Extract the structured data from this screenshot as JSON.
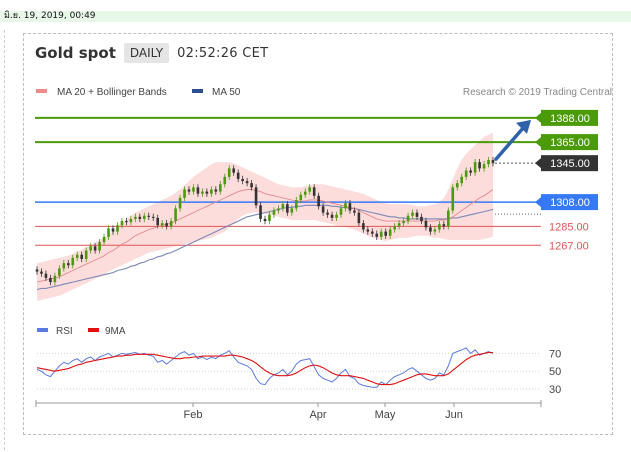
{
  "timestamp": "มิ.ย. 19, 2019, 00:49",
  "header": {
    "title": "Gold spot",
    "timeframe": "DAILY",
    "time": "02:52:26 CET"
  },
  "legend": {
    "bb_label": "MA 20 + Bollinger Bands",
    "ma50_label": "MA 50",
    "credit": "Research © 2019 Trading Central"
  },
  "colors": {
    "green": "#4a9a0a",
    "blue": "#3579f6",
    "red": "#e05555",
    "dark": "#333333",
    "bb_fill": "#fddcdc",
    "ma50": "#7a88b8",
    "rsi": "#5b7be0",
    "ma9": "#e01010",
    "arrow": "#2f62a8"
  },
  "chart_data": [
    {
      "type": "candlestick",
      "title": "Gold spot",
      "y_range": [
        1215,
        1405
      ],
      "x_ticks": [
        "Feb",
        "Apr",
        "May",
        "Jun"
      ],
      "levels": [
        {
          "value": 1388.0,
          "label": "1388.00",
          "kind": "resistance"
        },
        {
          "value": 1365.0,
          "label": "1365.00",
          "kind": "resistance"
        },
        {
          "value": 1345.0,
          "label": "1345.00",
          "kind": "last"
        },
        {
          "value": 1308.0,
          "label": "1308.00",
          "kind": "pivot"
        },
        {
          "value": 1285.0,
          "label": "1285.00",
          "kind": "support"
        },
        {
          "value": 1267.0,
          "label": "1267.00",
          "kind": "support"
        }
      ],
      "close": [
        1242,
        1240,
        1236,
        1232,
        1238,
        1245,
        1250,
        1248,
        1255,
        1258,
        1254,
        1262,
        1266,
        1262,
        1270,
        1275,
        1283,
        1280,
        1286,
        1290,
        1289,
        1292,
        1294,
        1292,
        1295,
        1294,
        1293,
        1286,
        1288,
        1285,
        1290,
        1302,
        1312,
        1320,
        1318,
        1322,
        1316,
        1318,
        1316,
        1320,
        1318,
        1325,
        1332,
        1340,
        1336,
        1330,
        1328,
        1326,
        1322,
        1305,
        1292,
        1290,
        1296,
        1300,
        1302,
        1306,
        1298,
        1302,
        1310,
        1315,
        1318,
        1322,
        1314,
        1304,
        1298,
        1296,
        1293,
        1296,
        1302,
        1307,
        1300,
        1298,
        1288,
        1282,
        1280,
        1278,
        1275,
        1280,
        1276,
        1282,
        1285,
        1288,
        1290,
        1295,
        1298,
        1294,
        1290,
        1284,
        1280,
        1282,
        1287,
        1285,
        1300,
        1322,
        1326,
        1332,
        1338,
        1336,
        1346,
        1340,
        1344,
        1348,
        1345
      ],
      "ma20": [
        1232,
        1233,
        1234,
        1235,
        1236,
        1237,
        1239,
        1241,
        1243,
        1245,
        1247,
        1249,
        1251,
        1253,
        1255,
        1257,
        1260,
        1262,
        1265,
        1268,
        1270,
        1273,
        1276,
        1278,
        1280,
        1282,
        1283,
        1285,
        1286,
        1287,
        1288,
        1290,
        1292,
        1294,
        1296,
        1298,
        1300,
        1302,
        1304,
        1306,
        1308,
        1310,
        1312,
        1314,
        1316,
        1318,
        1319,
        1320,
        1320,
        1319,
        1318,
        1316,
        1315,
        1314,
        1313,
        1312,
        1311,
        1310,
        1309,
        1309,
        1309,
        1310,
        1310,
        1310,
        1309,
        1308,
        1307,
        1306,
        1305,
        1304,
        1303,
        1302,
        1300,
        1298,
        1296,
        1294,
        1292,
        1291,
        1290,
        1290,
        1290,
        1290,
        1290,
        1290,
        1290,
        1290,
        1290,
        1290,
        1290,
        1290,
        1291,
        1291,
        1292,
        1294,
        1297,
        1300,
        1303,
        1306,
        1309,
        1312,
        1314,
        1317,
        1320
      ],
      "bb_upper": [
        1250,
        1251,
        1252,
        1253,
        1254,
        1255,
        1256,
        1257,
        1259,
        1261,
        1263,
        1265,
        1267,
        1270,
        1272,
        1274,
        1277,
        1280,
        1284,
        1288,
        1292,
        1295,
        1298,
        1300,
        1302,
        1304,
        1306,
        1308,
        1310,
        1312,
        1314,
        1317,
        1320,
        1324,
        1328,
        1332,
        1335,
        1338,
        1341,
        1344,
        1346,
        1346,
        1346,
        1346,
        1345,
        1343,
        1341,
        1339,
        1337,
        1335,
        1333,
        1331,
        1329,
        1327,
        1325,
        1324,
        1323,
        1322,
        1322,
        1322,
        1323,
        1324,
        1325,
        1325,
        1325,
        1324,
        1323,
        1322,
        1321,
        1320,
        1319,
        1318,
        1317,
        1316,
        1314,
        1312,
        1310,
        1308,
        1307,
        1306,
        1306,
        1306,
        1306,
        1306,
        1305,
        1304,
        1304,
        1304,
        1305,
        1306,
        1308,
        1312,
        1320,
        1330,
        1340,
        1348,
        1354,
        1358,
        1362,
        1366,
        1370,
        1372,
        1374
      ],
      "bb_lower": [
        1214,
        1215,
        1216,
        1217,
        1218,
        1219,
        1221,
        1223,
        1225,
        1227,
        1229,
        1231,
        1233,
        1235,
        1237,
        1239,
        1242,
        1244,
        1246,
        1248,
        1250,
        1252,
        1254,
        1256,
        1258,
        1260,
        1261,
        1262,
        1263,
        1264,
        1265,
        1266,
        1267,
        1268,
        1269,
        1270,
        1271,
        1272,
        1273,
        1274,
        1276,
        1278,
        1280,
        1284,
        1288,
        1292,
        1295,
        1297,
        1298,
        1298,
        1298,
        1297,
        1296,
        1295,
        1294,
        1293,
        1292,
        1291,
        1291,
        1291,
        1291,
        1291,
        1291,
        1290,
        1289,
        1288,
        1287,
        1286,
        1285,
        1284,
        1283,
        1282,
        1280,
        1278,
        1276,
        1274,
        1273,
        1272,
        1271,
        1272,
        1273,
        1274,
        1274,
        1274,
        1275,
        1276,
        1276,
        1276,
        1275,
        1274,
        1274,
        1273,
        1272,
        1272,
        1272,
        1272,
        1272,
        1272,
        1272,
        1272,
        1273,
        1274,
        1275
      ],
      "ma50": [
        1225,
        1226,
        1226,
        1227,
        1228,
        1229,
        1230,
        1231,
        1232,
        1233,
        1234,
        1235,
        1236,
        1237,
        1238,
        1239,
        1240,
        1241,
        1243,
        1244,
        1245,
        1247,
        1248,
        1250,
        1251,
        1253,
        1254,
        1256,
        1257,
        1259,
        1260,
        1262,
        1264,
        1266,
        1268,
        1270,
        1272,
        1274,
        1276,
        1278,
        1280,
        1282,
        1284,
        1286,
        1288,
        1290,
        1292,
        1294,
        1295,
        1296,
        1297,
        1298,
        1299,
        1300,
        1301,
        1302,
        1303,
        1303,
        1304,
        1304,
        1305,
        1305,
        1305,
        1305,
        1305,
        1305,
        1304,
        1304,
        1303,
        1303,
        1302,
        1302,
        1301,
        1300,
        1299,
        1298,
        1297,
        1296,
        1295,
        1294,
        1294,
        1293,
        1293,
        1292,
        1292,
        1292,
        1292,
        1292,
        1292,
        1292,
        1292,
        1292,
        1292,
        1293,
        1293,
        1294,
        1295,
        1296,
        1297,
        1298,
        1299,
        1300,
        1301
      ],
      "series_names": [
        "MA 20 + Bollinger Bands",
        "MA 50"
      ]
    },
    {
      "type": "line",
      "title": "RSI",
      "y_ticks": [
        70,
        50,
        30
      ],
      "y_range": [
        20,
        85
      ],
      "series": [
        {
          "name": "RSI",
          "values": [
            52,
            50,
            46,
            44,
            50,
            56,
            60,
            58,
            62,
            64,
            60,
            64,
            66,
            62,
            66,
            68,
            70,
            66,
            68,
            70,
            69,
            70,
            71,
            69,
            70,
            68,
            67,
            60,
            62,
            58,
            62,
            66,
            70,
            72,
            68,
            70,
            64,
            66,
            63,
            66,
            64,
            68,
            70,
            73,
            66,
            60,
            58,
            56,
            52,
            42,
            36,
            35,
            42,
            46,
            48,
            52,
            46,
            50,
            58,
            62,
            63,
            64,
            55,
            46,
            42,
            40,
            38,
            42,
            48,
            52,
            44,
            42,
            36,
            34,
            33,
            32,
            32,
            38,
            35,
            40,
            44,
            46,
            48,
            52,
            54,
            50,
            46,
            42,
            40,
            42,
            48,
            46,
            56,
            70,
            72,
            74,
            76,
            70,
            74,
            68,
            70,
            72,
            70
          ]
        },
        {
          "name": "9MA",
          "values": [
            54,
            53,
            52,
            51,
            50,
            51,
            52,
            53,
            55,
            57,
            58,
            60,
            61,
            62,
            63,
            64,
            65,
            66,
            67,
            67,
            68,
            68,
            69,
            69,
            69,
            69,
            69,
            68,
            67,
            66,
            65,
            64,
            64,
            65,
            65,
            66,
            66,
            67,
            67,
            67,
            67,
            67,
            67,
            68,
            68,
            67,
            66,
            64,
            62,
            59,
            55,
            51,
            48,
            46,
            45,
            45,
            45,
            46,
            48,
            51,
            54,
            56,
            57,
            56,
            54,
            51,
            48,
            46,
            45,
            45,
            45,
            44,
            43,
            42,
            40,
            38,
            36,
            35,
            35,
            35,
            36,
            38,
            40,
            42,
            44,
            46,
            47,
            47,
            46,
            45,
            45,
            45,
            47,
            51,
            55,
            59,
            63,
            66,
            68,
            69,
            70,
            71,
            71
          ]
        }
      ]
    }
  ]
}
